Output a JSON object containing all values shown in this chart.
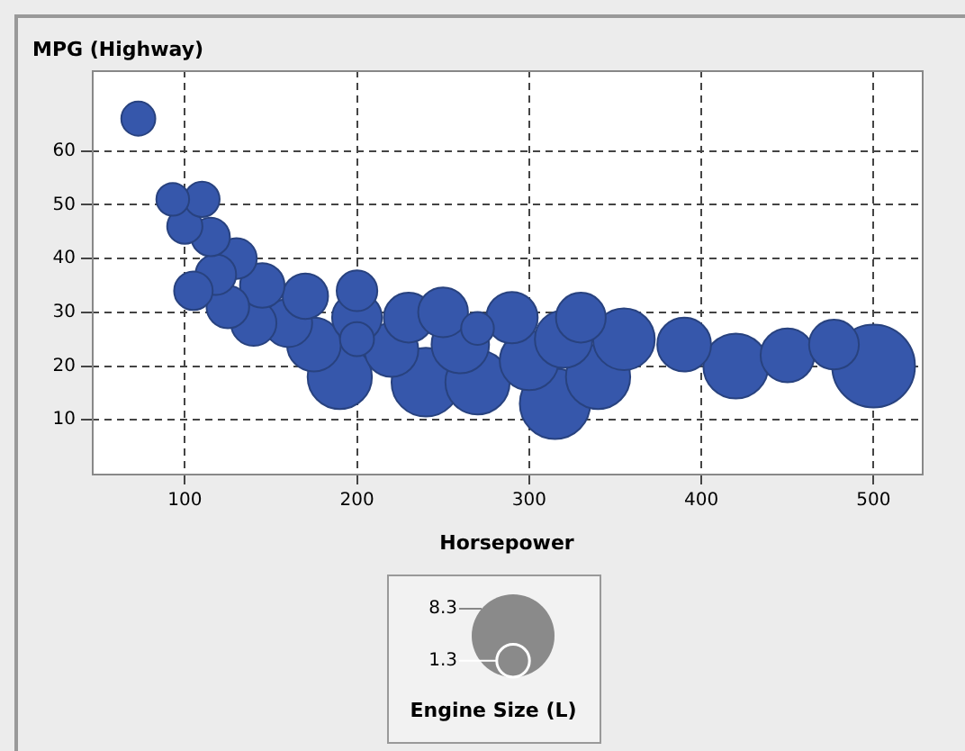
{
  "chart_data": {
    "type": "bubble",
    "xlabel": "Horsepower",
    "ylabel": "MPG (Highway)",
    "legend_title": "Engine Size (L)",
    "size_legend": [
      1.3,
      8.3
    ],
    "xlim": [
      46,
      528
    ],
    "ylim": [
      0,
      75
    ],
    "xticks": [
      100,
      200,
      300,
      400,
      500
    ],
    "yticks": [
      10,
      20,
      30,
      40,
      50,
      60
    ],
    "grid": true,
    "series": [
      {
        "color": "#3657ab",
        "x": [
          500,
          315,
          240,
          270,
          340,
          190,
          420,
          355,
          300,
          260,
          320,
          220,
          390,
          450,
          175,
          290,
          330,
          230,
          200,
          250,
          477,
          160,
          140,
          170,
          145,
          125,
          130,
          118,
          200,
          105,
          115,
          100,
          110,
          73,
          93,
          270,
          200
        ],
        "values": [
          20,
          13,
          17,
          17,
          18,
          18,
          20,
          25,
          21,
          24,
          25,
          23,
          24,
          22,
          24,
          29,
          29,
          29,
          29,
          30,
          24,
          28,
          28,
          33,
          35,
          31,
          40,
          37,
          34,
          34,
          44,
          46,
          51,
          66,
          51,
          27,
          25
        ],
        "sizes": [
          8.3,
          6.0,
          5.7,
          5.0,
          5.0,
          5.0,
          5.1,
          4.6,
          4.2,
          4.0,
          4.0,
          3.5,
          3.5,
          3.5,
          3.5,
          3.2,
          3.0,
          3.0,
          3.0,
          3.0,
          3.0,
          2.8,
          2.5,
          2.5,
          2.4,
          2.2,
          2.0,
          2.0,
          2.0,
          1.8,
          1.8,
          1.5,
          1.5,
          1.4,
          1.3,
          1.3,
          1.4
        ]
      }
    ]
  }
}
